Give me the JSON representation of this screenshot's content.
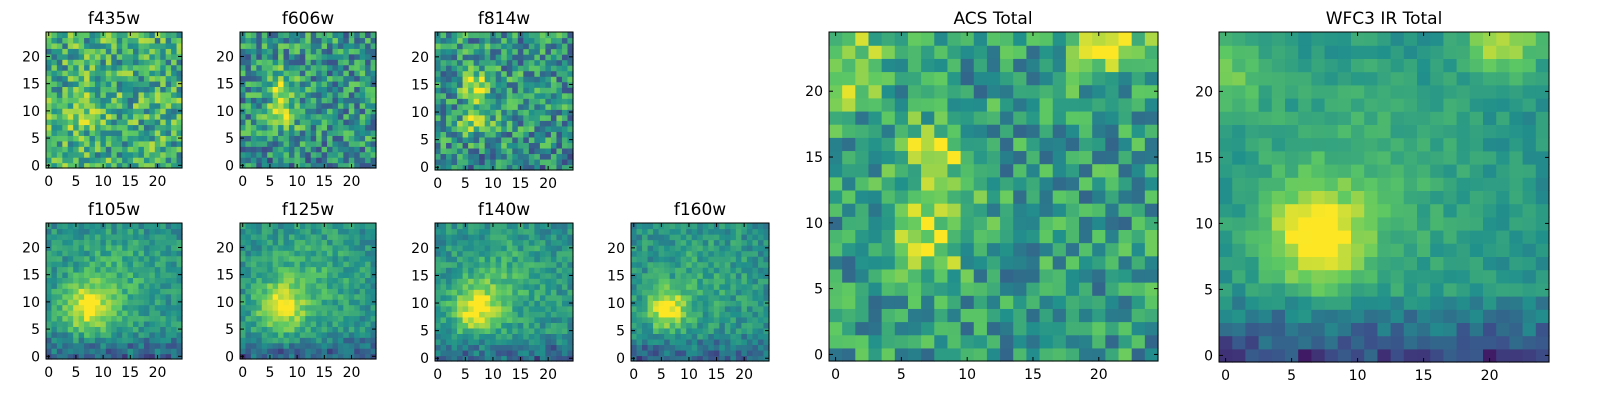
{
  "figure": {
    "colormap": "viridis",
    "colormap_colors": [
      "#440154",
      "#3b528b",
      "#21918c",
      "#5ec962",
      "#fde725"
    ]
  },
  "chart_data": [
    {
      "type": "heatmap",
      "title": "f435w",
      "grid_size": 25,
      "xticks": [
        0,
        5,
        10,
        15,
        20
      ],
      "yticks": [
        0,
        5,
        10,
        15,
        20
      ],
      "xlim": [
        -0.5,
        24.5
      ],
      "ylim": [
        -0.5,
        24.5
      ],
      "values": [],
      "value_note": "noisy pixel map, mean level ~0.65 (0=dark purple, 1=yellow), weak central source"
    },
    {
      "type": "heatmap",
      "title": "f606w",
      "grid_size": 25,
      "xticks": [
        0,
        5,
        10,
        15,
        20
      ],
      "yticks": [
        0,
        5,
        10,
        15,
        20
      ],
      "xlim": [
        -0.5,
        24.5
      ],
      "ylim": [
        -0.5,
        24.5
      ],
      "values": [],
      "value_note": "noisy pixel map with bright clumps near (7,9) and (7,15)"
    },
    {
      "type": "heatmap",
      "title": "f814w",
      "grid_size": 25,
      "xticks": [
        0,
        5,
        10,
        15,
        20
      ],
      "yticks": [
        0,
        5,
        10,
        15,
        20
      ],
      "xlim": [
        -0.5,
        24.5
      ],
      "ylim": [
        -0.5,
        24.5
      ],
      "values": [],
      "value_note": "noisy pixel map with bright clumps near (7,9) and (7,15)"
    },
    {
      "type": "heatmap",
      "title": "f105w",
      "grid_size": 25,
      "xticks": [
        0,
        5,
        10,
        15,
        20
      ],
      "yticks": [
        0,
        5,
        10,
        15,
        20
      ],
      "xlim": [
        -0.5,
        24.5
      ],
      "ylim": [
        -0.5,
        24.5
      ],
      "values": [],
      "value_note": "smooth source peaking near (7,9), dark lower region"
    },
    {
      "type": "heatmap",
      "title": "f125w",
      "grid_size": 25,
      "xticks": [
        0,
        5,
        10,
        15,
        20
      ],
      "yticks": [
        0,
        5,
        10,
        15,
        20
      ],
      "xlim": [
        -0.5,
        24.5
      ],
      "ylim": [
        -0.5,
        24.5
      ],
      "values": [],
      "value_note": "smooth source peaking near (7,9), dark lower region"
    },
    {
      "type": "heatmap",
      "title": "f140w",
      "grid_size": 25,
      "xticks": [
        0,
        5,
        10,
        15,
        20
      ],
      "yticks": [
        0,
        5,
        10,
        15,
        20
      ],
      "xlim": [
        -0.5,
        24.5
      ],
      "ylim": [
        -0.5,
        24.5
      ],
      "values": [],
      "value_note": "smooth source peaking near (7,9), dark lower region"
    },
    {
      "type": "heatmap",
      "title": "f160w",
      "grid_size": 25,
      "xticks": [
        0,
        5,
        10,
        15,
        20
      ],
      "yticks": [
        0,
        5,
        10,
        15,
        20
      ],
      "xlim": [
        -0.5,
        24.5
      ],
      "ylim": [
        -0.5,
        24.5
      ],
      "values": [],
      "value_note": "smooth source peaking near (7,9), dark lower region"
    },
    {
      "type": "heatmap",
      "title": "ACS Total",
      "grid_size": 25,
      "xticks": [
        0,
        5,
        10,
        15,
        20
      ],
      "yticks": [
        0,
        5,
        10,
        15,
        20
      ],
      "xlim": [
        -0.5,
        24.5
      ],
      "ylim": [
        -0.5,
        24.5
      ],
      "values": [],
      "value_note": "bright clumps near (7,9) and (7,15), bright top-right and top-left corners"
    },
    {
      "type": "heatmap",
      "title": "WFC3 IR Total",
      "grid_size": 25,
      "xticks": [
        0,
        5,
        10,
        15,
        20
      ],
      "yticks": [
        0,
        5,
        10,
        15,
        20
      ],
      "xlim": [
        -0.5,
        24.5
      ],
      "ylim": [
        -0.5,
        24.5
      ],
      "values": [],
      "value_note": "bright source peaking near (7,9), dark band along bottom rows"
    }
  ]
}
